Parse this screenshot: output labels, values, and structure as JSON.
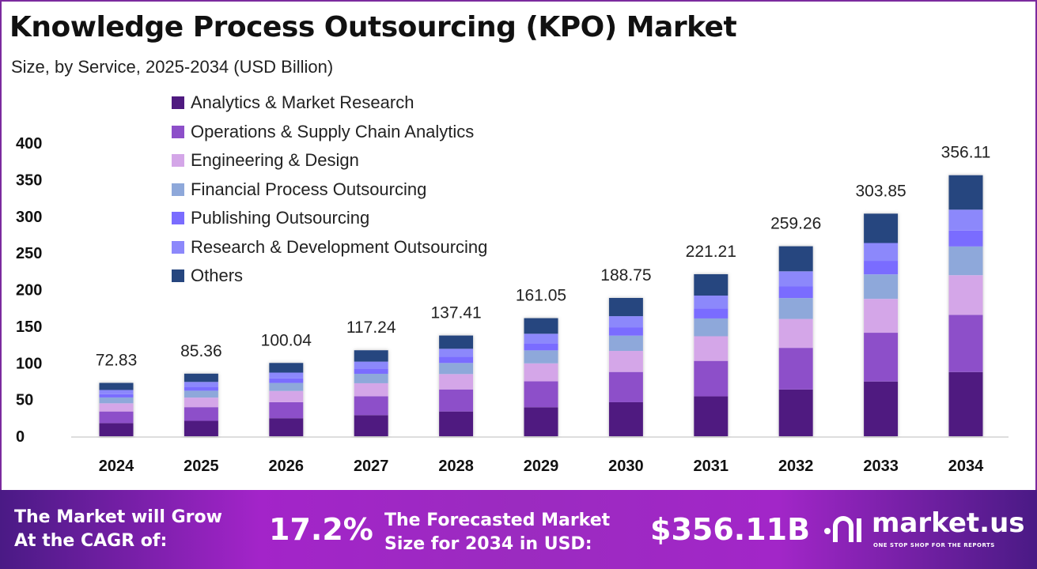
{
  "title": "Knowledge Process Outsourcing (KPO) Market",
  "subtitle": "Size, by Service, 2025-2034 (USD Billion)",
  "chart_data": {
    "type": "bar",
    "stacked": true,
    "title": "Knowledge Process Outsourcing (KPO) Market",
    "subtitle": "Size, by Service, 2025-2034 (USD Billion)",
    "categories": [
      "2024",
      "2025",
      "2026",
      "2027",
      "2028",
      "2029",
      "2030",
      "2031",
      "2032",
      "2033",
      "2034"
    ],
    "totals": [
      "72.83",
      "85.36",
      "100.04",
      "117.24",
      "137.41",
      "161.05",
      "188.75",
      "221.21",
      "259.26",
      "303.85",
      "356.11"
    ],
    "ylim": [
      0,
      400
    ],
    "yticks": [
      "0",
      "50",
      "100",
      "150",
      "200",
      "250",
      "300",
      "350",
      "400"
    ],
    "grid": false,
    "legend_position": "top-left",
    "series": [
      {
        "name": "Analytics & Market Research",
        "color": "#4f1a80",
        "values": [
          17.9,
          21.0,
          24.6,
          28.8,
          33.8,
          39.6,
          46.4,
          54.4,
          63.8,
          74.7,
          87.6
        ]
      },
      {
        "name": "Operations & Supply Chain Analytics",
        "color": "#8d4fc9",
        "values": [
          15.9,
          18.7,
          21.9,
          25.7,
          30.1,
          35.3,
          41.3,
          48.4,
          56.8,
          66.5,
          78.0
        ]
      },
      {
        "name": "Engineering & Design",
        "color": "#d4a6e8",
        "values": [
          11.1,
          13.0,
          15.2,
          17.8,
          20.9,
          24.5,
          28.7,
          33.6,
          39.4,
          46.2,
          54.1
        ]
      },
      {
        "name": "Financial Process Outsourcing",
        "color": "#8ea8da",
        "values": [
          8.0,
          9.4,
          11.0,
          12.9,
          15.1,
          17.7,
          20.8,
          24.3,
          28.5,
          33.4,
          39.2
        ]
      },
      {
        "name": "Publishing Outsourcing",
        "color": "#7a6cff",
        "values": [
          4.4,
          5.2,
          6.1,
          7.2,
          8.4,
          9.8,
          11.5,
          13.5,
          15.8,
          18.5,
          21.7
        ]
      },
      {
        "name": "Research & Development Outsourcing",
        "color": "#8c88fb",
        "values": [
          5.8,
          6.8,
          8.0,
          9.4,
          11.0,
          12.9,
          15.1,
          17.7,
          20.7,
          24.3,
          28.5
        ]
      },
      {
        "name": "Others",
        "color": "#26467f",
        "values": [
          9.7,
          11.3,
          13.2,
          15.5,
          18.1,
          21.3,
          24.9,
          29.2,
          34.2,
          40.1,
          47.0
        ]
      }
    ]
  },
  "footer": {
    "cagr_label_1": "The Market will Grow",
    "cagr_label_2": "At the CAGR of:",
    "cagr_value": "17.2%",
    "forecast_label_1": "The Forecasted Market",
    "forecast_label_2": "Size for 2034 in USD:",
    "forecast_value": "$356.11B",
    "logo_text": "market.us",
    "logo_tagline": "ONE STOP SHOP FOR THE REPORTS"
  }
}
